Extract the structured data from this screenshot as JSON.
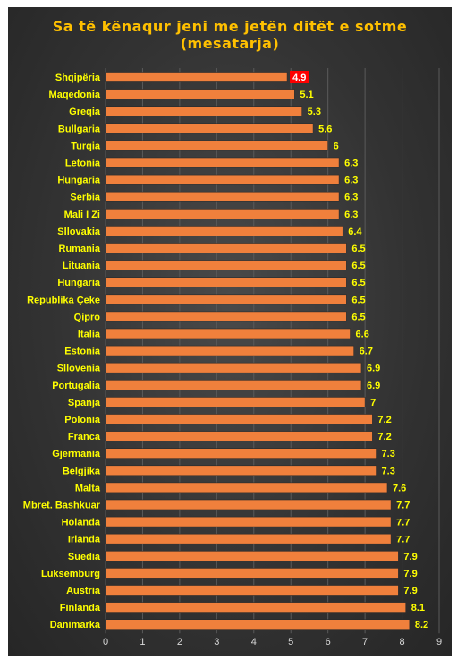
{
  "chart_data": {
    "type": "bar",
    "orientation": "horizontal",
    "title_lines": [
      "Sa të kënaqur jeni me jetën ditët e sotme",
      "(mesatarja)"
    ],
    "categories": [
      "Shqipëria",
      "Maqedonia",
      "Greqia",
      "Bullgaria",
      "Turqia",
      "Letonia",
      "Hungaria",
      "Serbia",
      "Mali I Zi",
      "Sllovakia",
      "Rumania",
      "Lituania",
      "Hungaria",
      "Republika Çeke",
      "Qipro",
      "Italia",
      "Estonia",
      "Sllovenia",
      "Portugalia",
      "Spanja",
      "Polonia",
      "Franca",
      "Gjermania",
      "Belgjika",
      "Malta",
      "Mbret. Bashkuar",
      "Holanda",
      "Irlanda",
      "Suedia",
      "Luksemburg",
      "Austria",
      "Finlanda",
      "Danimarka"
    ],
    "values": [
      4.9,
      5.1,
      5.3,
      5.6,
      6,
      6.3,
      6.3,
      6.3,
      6.3,
      6.4,
      6.5,
      6.5,
      6.5,
      6.5,
      6.5,
      6.6,
      6.7,
      6.9,
      6.9,
      7,
      7.2,
      7.2,
      7.3,
      7.3,
      7.6,
      7.7,
      7.7,
      7.7,
      7.9,
      7.9,
      7.9,
      8.1,
      8.2
    ],
    "value_labels": [
      "4.9",
      "5.1",
      "5.3",
      "5.6",
      "6",
      "6.3",
      "6.3",
      "6.3",
      "6.3",
      "6.4",
      "6.5",
      "6.5",
      "6.5",
      "6.5",
      "6.5",
      "6.6",
      "6.7",
      "6.9",
      "6.9",
      "7",
      "7.2",
      "7.2",
      "7.3",
      "7.3",
      "7.6",
      "7.7",
      "7.7",
      "7.7",
      "7.9",
      "7.9",
      "7.9",
      "8.1",
      "8.2"
    ],
    "highlight_index": 0,
    "xlim": [
      0,
      9
    ],
    "xticks": [
      "0",
      "1",
      "2",
      "3",
      "4",
      "5",
      "6",
      "7",
      "8",
      "9"
    ],
    "grid": true,
    "legend": "none",
    "colors": {
      "bar": "#f0803c",
      "bar_stroke": "#2a2a2a",
      "title": "#ffc000",
      "labels": "#ffff00",
      "highlight_box": "#ff0000",
      "highlight_text": "#ffffff",
      "grid": "#5a5a5a",
      "ticks": "#d9d9d9"
    }
  }
}
